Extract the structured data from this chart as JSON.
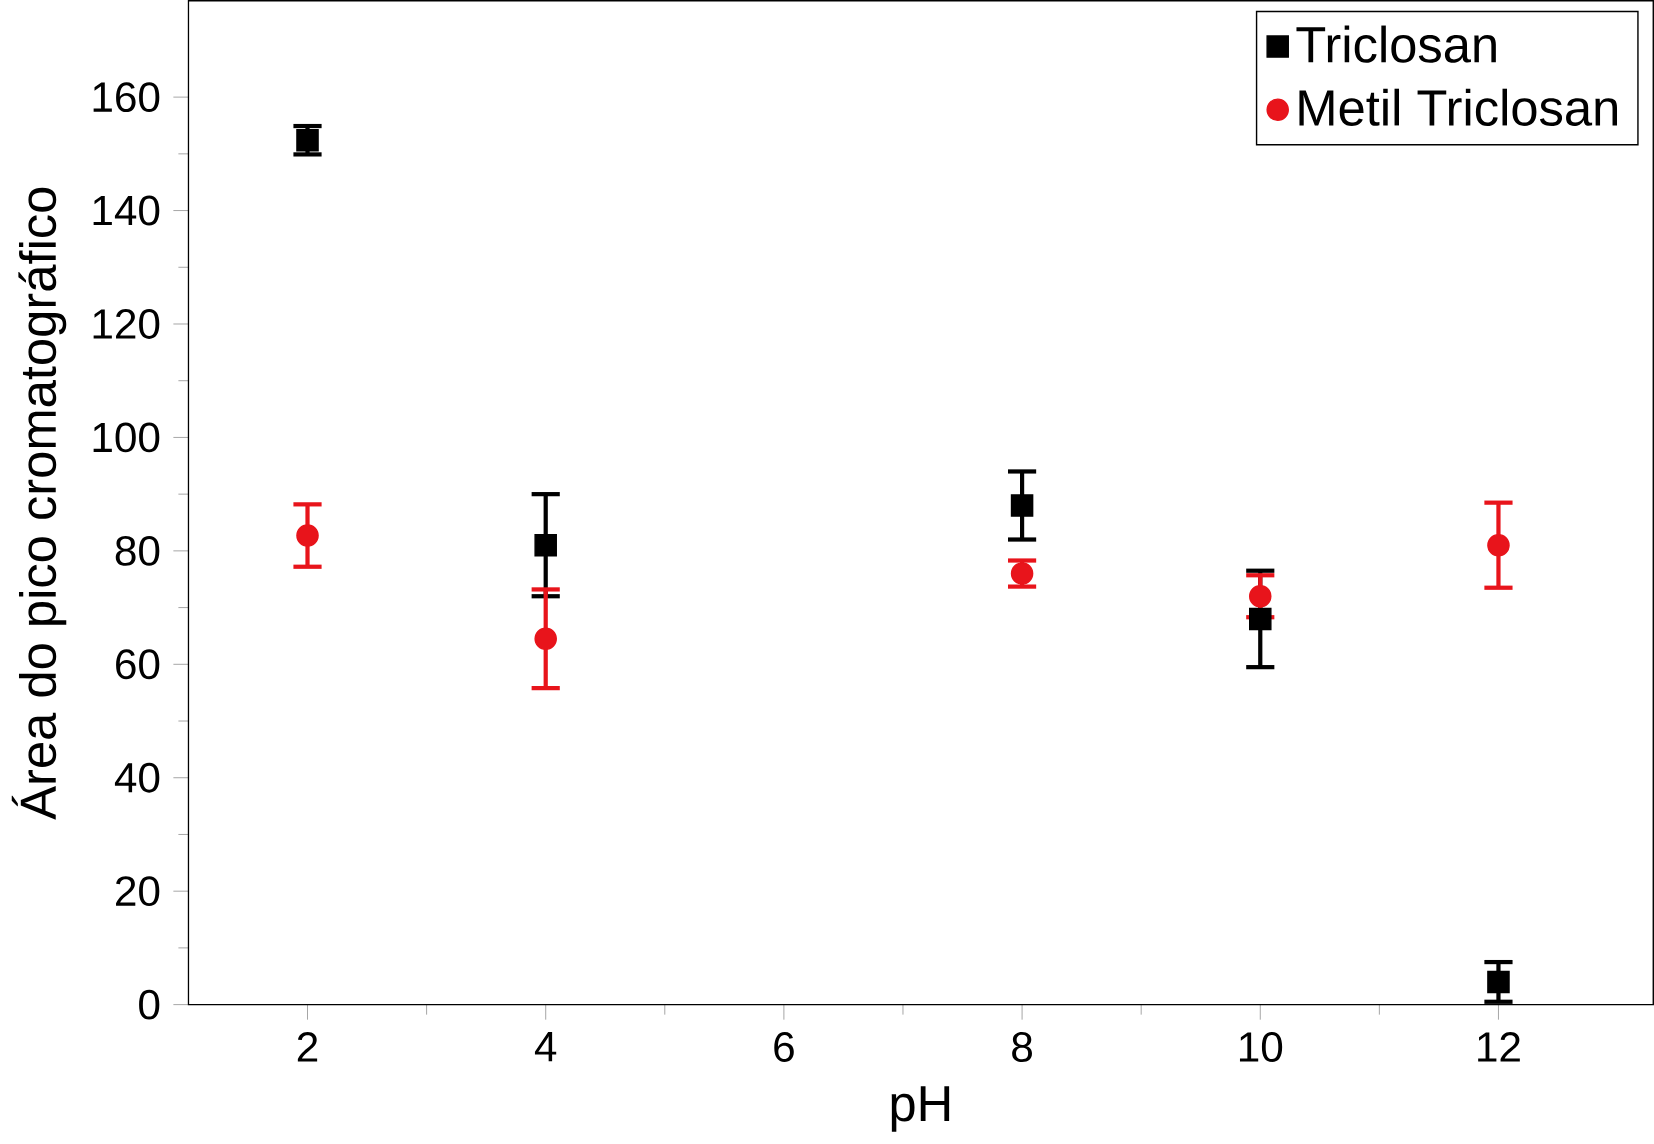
{
  "chart_data": {
    "type": "scatter",
    "xlabel": "pH",
    "ylabel": "Área do pico cromatográfico",
    "x": [
      2,
      4,
      8,
      10,
      12
    ],
    "series": [
      {
        "name": "Triclosan",
        "color": "#000000",
        "marker": "square",
        "values": [
          152.4,
          81,
          88,
          68,
          4
        ],
        "errors": [
          2.5,
          9,
          6,
          8.5,
          3.5
        ]
      },
      {
        "name": "Metil Triclosan",
        "color": "#e8141b",
        "marker": "circle",
        "values": [
          82.7,
          64.5,
          76,
          72,
          81
        ],
        "errors": [
          5.5,
          8.7,
          2.3,
          3.7,
          7.5
        ]
      }
    ],
    "xlim": [
      1,
      13.3
    ],
    "ylim": [
      0,
      177
    ],
    "xticks": [
      2,
      4,
      6,
      8,
      10,
      12
    ],
    "yticks": [
      0,
      20,
      40,
      60,
      80,
      100,
      120,
      140,
      160
    ],
    "grid": false,
    "legend": "top right"
  }
}
